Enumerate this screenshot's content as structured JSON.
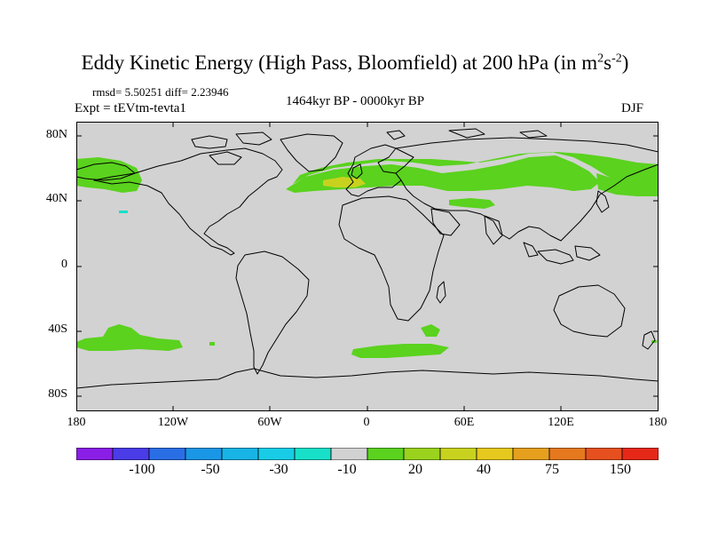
{
  "title": {
    "text": "Eddy Kinetic Energy (High Pass, Bloomfield) at 200 hPa (in m",
    "sup1": "2",
    "mid": "s",
    "sup2": "-2",
    "close": ")"
  },
  "stats": "rmsd= 5.50251 diff= 2.23946",
  "expt": "Expt = tEVtm-tevta1",
  "period": "1464kyr BP - 0000kyr BP",
  "season": "DJF",
  "lat_ticks": [
    "80N",
    "40N",
    "0",
    "40S",
    "80S"
  ],
  "lon_ticks": [
    "180",
    "120W",
    "60W",
    "0",
    "60E",
    "120E",
    "180"
  ],
  "colorbar": {
    "labels": [
      "-100",
      "-50",
      "-30",
      "-10",
      "20",
      "40",
      "75",
      "150"
    ],
    "colors": [
      "#8a1ee6",
      "#4a3ce6",
      "#2a6ee6",
      "#1a96e6",
      "#18b4e6",
      "#18cce6",
      "#18e0c8",
      "#d2d2d2",
      "#5ad21e",
      "#9ad21e",
      "#c8d21e",
      "#e6c81e",
      "#e6a01e",
      "#e6781e",
      "#e6501e",
      "#e62818"
    ]
  },
  "colors": {
    "background": "#d2d2d2",
    "positive_low": "#5ad21e",
    "positive_mid": "#c8d21e",
    "negative_low": "#18e0c8"
  }
}
